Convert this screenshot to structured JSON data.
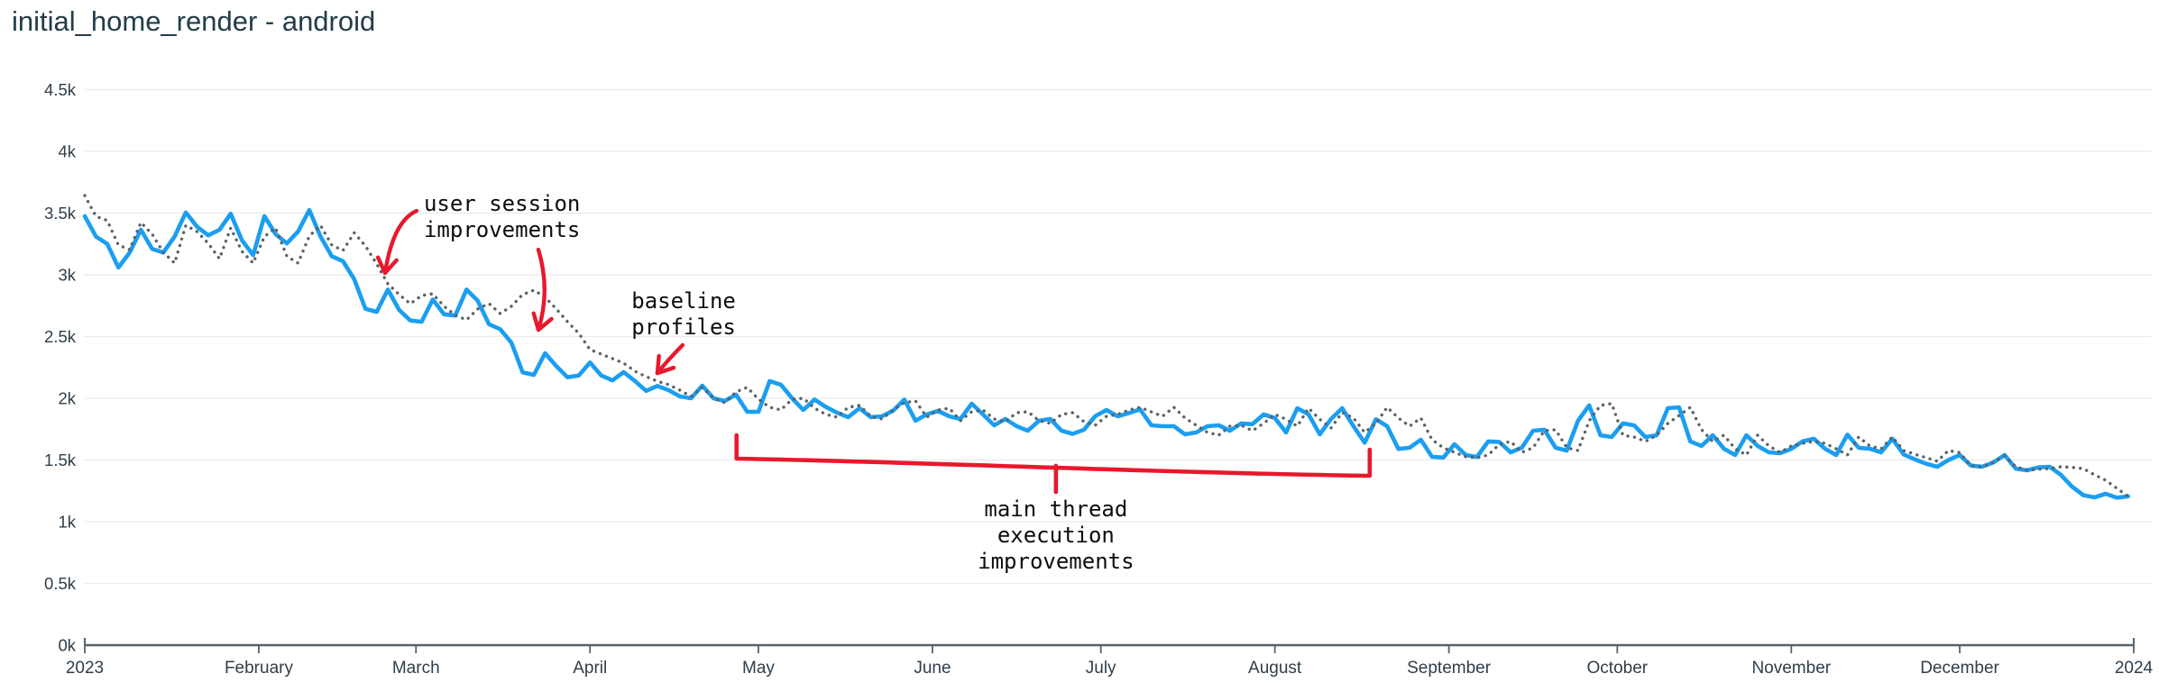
{
  "page": {
    "title": "initial_home_render - android"
  },
  "colors": {
    "line_current": "#1b9ef0",
    "line_comparison": "#5b6268",
    "annotation": "#e8182d",
    "annotation_text": "#0d0d0d",
    "grid": "#e9ebec",
    "axis": "#55626b",
    "tick_label": "#2f3e49",
    "title": "#233c49",
    "background": "#ffffff"
  },
  "chart_data": {
    "type": "line",
    "title": "initial_home_render - android",
    "xlabel": "",
    "ylabel": "",
    "grid": "horizontal",
    "legend": "none",
    "x_axis": {
      "unit": "day-of-year 2023",
      "range_days": [
        0,
        365
      ],
      "tick_days": [
        0,
        31,
        59,
        90,
        120,
        151,
        181,
        212,
        243,
        273,
        304,
        334,
        365
      ],
      "tick_labels": [
        "2023",
        "February",
        "March",
        "April",
        "May",
        "June",
        "July",
        "August",
        "September",
        "October",
        "November",
        "December",
        "2024"
      ]
    },
    "y_axis": {
      "ylim": [
        0,
        4500
      ],
      "tick_values": [
        0,
        500,
        1000,
        1500,
        2000,
        2500,
        3000,
        3500,
        4000,
        4500
      ],
      "tick_labels": [
        "0k",
        "0.5k",
        "1k",
        "1.5k",
        "2k",
        "2.5k",
        "3k",
        "3.5k",
        "4k",
        "4.5k"
      ]
    },
    "sample_step_days": 2,
    "series": [
      {
        "name": "initial_home_render current period",
        "style": "solid",
        "color_key": "line_current",
        "values": [
          3475,
          3310,
          3250,
          3060,
          3180,
          3365,
          3210,
          3180,
          3310,
          3505,
          3390,
          3320,
          3365,
          3495,
          3280,
          3160,
          3475,
          3330,
          3255,
          3350,
          3525,
          3310,
          3150,
          3110,
          2964,
          2725,
          2700,
          2880,
          2715,
          2630,
          2620,
          2800,
          2680,
          2670,
          2880,
          2790,
          2600,
          2560,
          2450,
          2210,
          2190,
          2365,
          2260,
          2170,
          2185,
          2290,
          2185,
          2145,
          2212,
          2140,
          2060,
          2100,
          2066,
          2015,
          2000,
          2102,
          2000,
          1978,
          2029,
          1891,
          1890,
          2139,
          2110,
          2000,
          1905,
          1990,
          1930,
          1883,
          1847,
          1920,
          1847,
          1854,
          1900,
          1990,
          1818,
          1869,
          1898,
          1854,
          1832,
          1956,
          1869,
          1781,
          1832,
          1774,
          1737,
          1818,
          1832,
          1737,
          1712,
          1745,
          1855,
          1905,
          1854,
          1880,
          1910,
          1781,
          1774,
          1774,
          1708,
          1723,
          1774,
          1781,
          1737,
          1796,
          1790,
          1869,
          1840,
          1723,
          1920,
          1869,
          1708,
          1832,
          1920,
          1774,
          1640,
          1830,
          1774,
          1590,
          1599,
          1664,
          1526,
          1520,
          1628,
          1540,
          1525,
          1650,
          1645,
          1562,
          1600,
          1737,
          1745,
          1599,
          1577,
          1818,
          1942,
          1700,
          1686,
          1796,
          1780,
          1686,
          1700,
          1920,
          1927,
          1650,
          1614,
          1701,
          1591,
          1540,
          1701,
          1614,
          1562,
          1555,
          1590,
          1650,
          1672,
          1591,
          1540,
          1705,
          1599,
          1591,
          1562,
          1672,
          1545,
          1505,
          1470,
          1445,
          1500,
          1540,
          1455,
          1445,
          1480,
          1540,
          1430,
          1416,
          1440,
          1445,
          1380,
          1285,
          1215,
          1197,
          1226,
          1195,
          1205
        ]
      },
      {
        "name": "comparison period (dotted)",
        "style": "dotted",
        "color_key": "line_comparison",
        "values": [
          3642,
          3474,
          3440,
          3241,
          3204,
          3424,
          3330,
          3182,
          3095,
          3401,
          3350,
          3255,
          3131,
          3379,
          3190,
          3095,
          3310,
          3379,
          3150,
          3095,
          3314,
          3401,
          3241,
          3197,
          3340,
          3234,
          3088,
          2927,
          2840,
          2766,
          2832,
          2847,
          2745,
          2672,
          2635,
          2723,
          2767,
          2686,
          2745,
          2840,
          2876,
          2818,
          2723,
          2620,
          2526,
          2394,
          2358,
          2321,
          2285,
          2219,
          2175,
          2138,
          2110,
          2066,
          2015,
          2088,
          2000,
          1964,
          2051,
          2088,
          1993,
          1927,
          1905,
          1993,
          2000,
          1920,
          1869,
          1847,
          1927,
          1942,
          1854,
          1832,
          1905,
          1964,
          1978,
          1847,
          1905,
          1920,
          1818,
          1891,
          1905,
          1832,
          1810,
          1883,
          1891,
          1818,
          1796,
          1869,
          1883,
          1810,
          1781,
          1854,
          1869,
          1905,
          1927,
          1890,
          1854,
          1927,
          1840,
          1781,
          1723,
          1701,
          1774,
          1781,
          1737,
          1796,
          1869,
          1830,
          1774,
          1920,
          1830,
          1759,
          1885,
          1840,
          1723,
          1796,
          1927,
          1840,
          1774,
          1840,
          1664,
          1599,
          1562,
          1526,
          1518,
          1540,
          1628,
          1650,
          1562,
          1599,
          1737,
          1745,
          1599,
          1577,
          1818,
          1942,
          1957,
          1700,
          1686,
          1650,
          1700,
          1796,
          1860,
          1927,
          1746,
          1650,
          1701,
          1591,
          1540,
          1701,
          1614,
          1562,
          1614,
          1635,
          1650,
          1635,
          1591,
          1540,
          1686,
          1614,
          1591,
          1686,
          1577,
          1547,
          1520,
          1490,
          1577,
          1560,
          1453,
          1445,
          1482,
          1533,
          1445,
          1416,
          1425,
          1431,
          1445,
          1440,
          1431,
          1380,
          1336,
          1270,
          1205
        ]
      }
    ],
    "annotations": [
      {
        "id": "user-session-improvements",
        "lines": [
          "user session",
          "improvements"
        ],
        "align": "start",
        "text_anchor_day": 60.4,
        "text_top_value": 3680,
        "arrows": [
          {
            "from_day": 59.1,
            "from_value": 3518,
            "ctrl_day": 54.9,
            "ctrl_value": 3431,
            "to_day": 53.5,
            "to_value": 3015
          },
          {
            "from_day": 80.8,
            "from_value": 3204,
            "ctrl_day": 83.0,
            "ctrl_value": 2876,
            "to_day": 80.8,
            "to_value": 2555
          }
        ]
      },
      {
        "id": "baseline-profiles",
        "lines": [
          "baseline",
          "profiles"
        ],
        "align": "start",
        "text_anchor_day": 97.4,
        "text_top_value": 2890,
        "arrows": [
          {
            "from_day": 106.5,
            "from_value": 2431,
            "ctrl_day": 103.9,
            "ctrl_value": 2312,
            "to_day": 102.0,
            "to_value": 2204
          }
        ]
      },
      {
        "id": "main-thread-execution-improvements",
        "lines": [
          "main thread",
          "execution",
          "improvements"
        ],
        "align": "middle",
        "text_anchor_day": 173,
        "text_top_value": 1204,
        "bracket": {
          "left_day": 116.1,
          "right_day": 228.9,
          "left_tick_top_value": 1701,
          "left_value": 1511,
          "right_value": 1372,
          "right_tick_top_value": 1584,
          "stem_day": 173,
          "stem_from_value": 1453,
          "stem_to_value": 1241
        }
      }
    ]
  }
}
